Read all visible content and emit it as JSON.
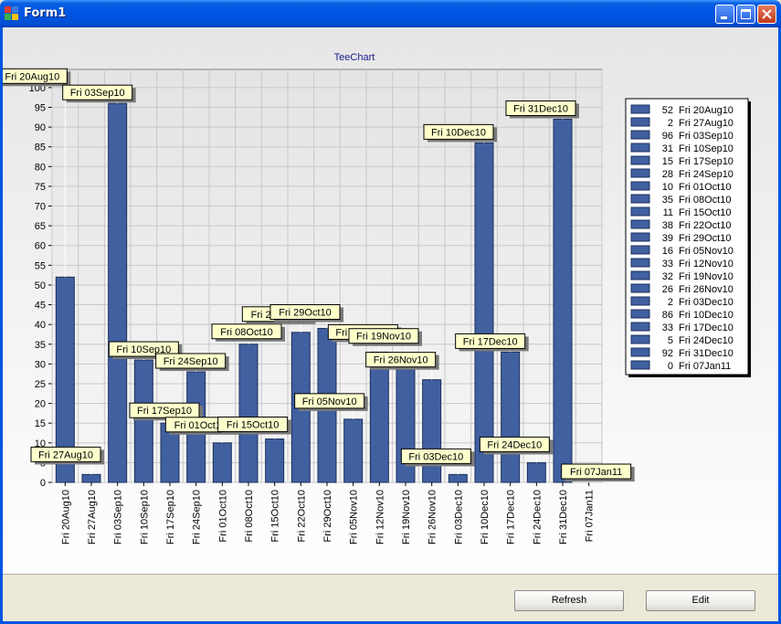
{
  "window": {
    "title": "Form1"
  },
  "buttons": {
    "refresh": "Refresh",
    "edit": "Edit"
  },
  "chart_data": {
    "type": "bar",
    "title": "TeeChart",
    "xlabel": "",
    "ylabel": "",
    "ylim": [
      0,
      100
    ],
    "yticks": [
      0,
      5,
      10,
      15,
      20,
      25,
      30,
      35,
      40,
      45,
      50,
      55,
      60,
      65,
      70,
      75,
      80,
      85,
      90,
      95,
      100
    ],
    "grid": true,
    "legend_position": "right",
    "colors": {
      "bar": "#4060a0",
      "mark_bg": "#ffffcc",
      "title": "#1a1a8c"
    },
    "categories": [
      "Fri 20Aug10",
      "Fri 27Aug10",
      "Fri 03Sep10",
      "Fri 10Sep10",
      "Fri 17Sep10",
      "Fri 24Sep10",
      "Fri 01Oct10",
      "Fri 08Oct10",
      "Fri 15Oct10",
      "Fri 22Oct10",
      "Fri 29Oct10",
      "Fri 05Nov10",
      "Fri 12Nov10",
      "Fri 19Nov10",
      "Fri 26Nov10",
      "Fri 03Dec10",
      "Fri 10Dec10",
      "Fri 17Dec10",
      "Fri 24Dec10",
      "Fri 31Dec10",
      "Fri 07Jan11"
    ],
    "values": [
      52,
      2,
      96,
      31,
      15,
      28,
      10,
      35,
      11,
      38,
      39,
      16,
      33,
      32,
      26,
      2,
      86,
      33,
      5,
      92,
      0
    ]
  }
}
